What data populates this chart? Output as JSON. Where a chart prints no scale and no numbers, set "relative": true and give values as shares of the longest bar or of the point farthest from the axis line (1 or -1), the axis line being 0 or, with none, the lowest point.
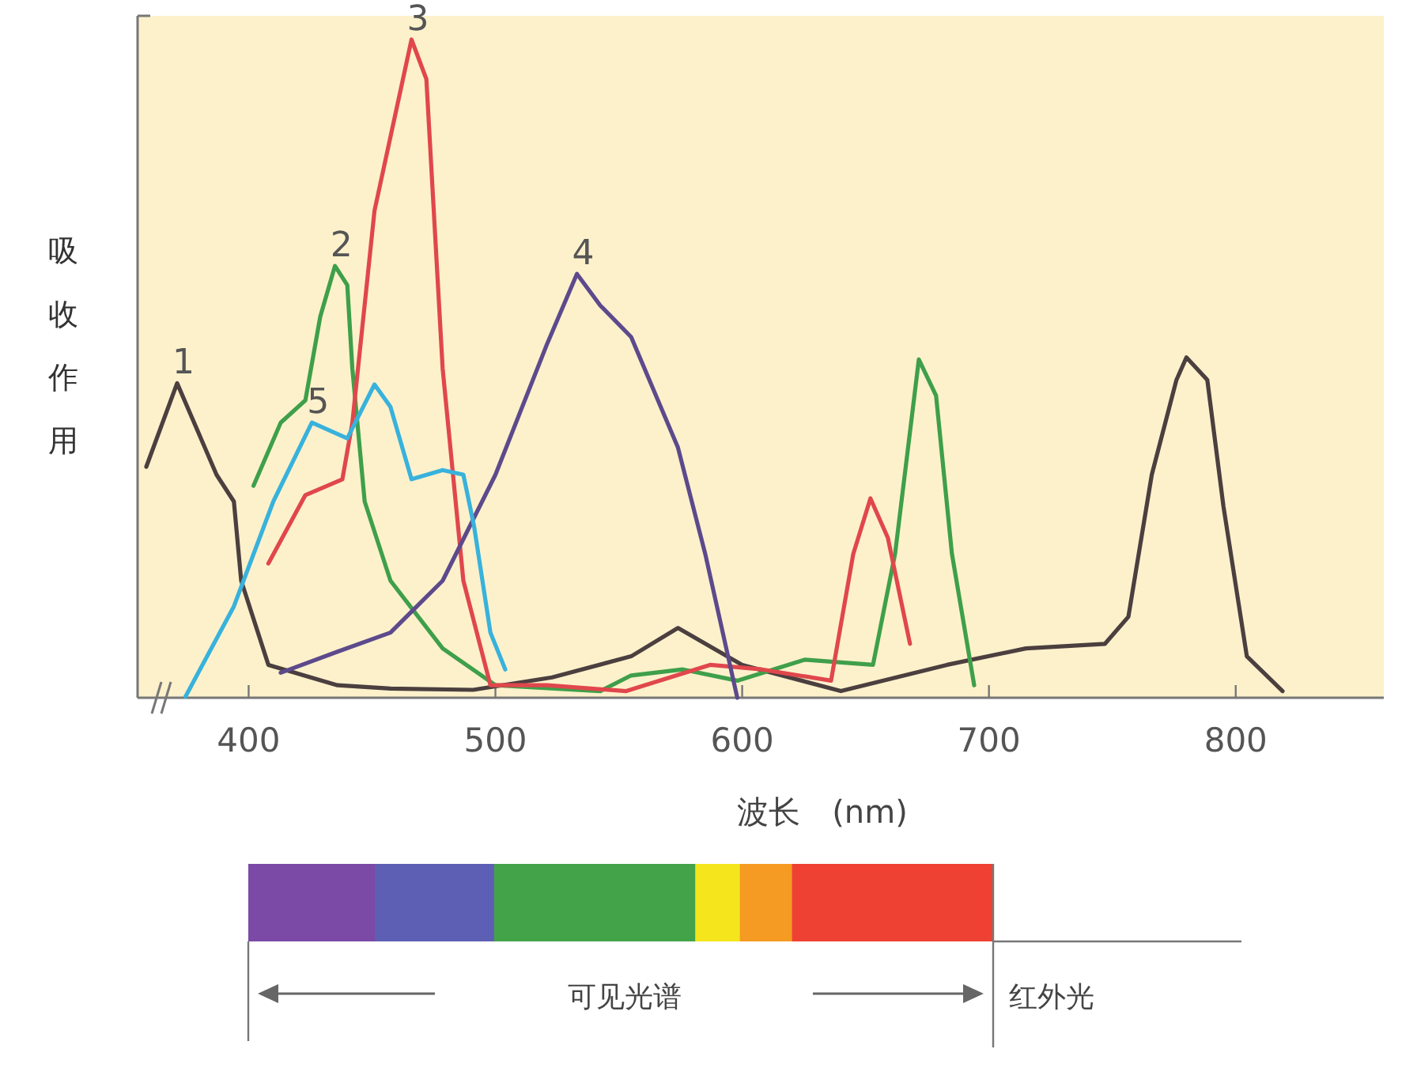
{
  "chart_data": {
    "type": "line",
    "relative": true,
    "xlim": [
      355,
      860
    ],
    "xticks": [
      400,
      500,
      600,
      700,
      800
    ],
    "xlabel": "波长　(nm)",
    "ylabel": "吸收作用",
    "series": [
      {
        "name": "1",
        "color": "#4b3f3f",
        "x": [
          358.5,
          371,
          387,
          394,
          397,
          408,
          436,
          457.5,
          491,
          523,
          555,
          574,
          600,
          640,
          683,
          715,
          747,
          756.5,
          766,
          776,
          780,
          788.5,
          795,
          804.5,
          819
        ],
        "values": [
          0.351,
          0.478,
          0.339,
          0.298,
          0.178,
          0.05,
          0.019,
          0.014,
          0.012,
          0.031,
          0.063,
          0.106,
          0.05,
          0.01,
          0.05,
          0.075,
          0.082,
          0.123,
          0.339,
          0.483,
          0.517,
          0.483,
          0.291,
          0.063,
          0.01
        ]
      },
      {
        "name": "2",
        "color": "#3f9f4a",
        "x": [
          402,
          413,
          423,
          429,
          435,
          440,
          442,
          447,
          457.5,
          478.6,
          500,
          542.5,
          555,
          576,
          598,
          625.5,
          653,
          662,
          671.6,
          678.6,
          685,
          694
        ],
        "values": [
          0.322,
          0.418,
          0.452,
          0.579,
          0.656,
          0.627,
          0.5,
          0.298,
          0.178,
          0.075,
          0.019,
          0.01,
          0.034,
          0.043,
          0.026,
          0.058,
          0.05,
          0.219,
          0.514,
          0.459,
          0.219,
          0.019
        ]
      },
      {
        "name": "3",
        "color": "#e0474c",
        "x": [
          408,
          423,
          438,
          442,
          451,
          466,
          472,
          478.6,
          487,
          498,
          521,
          553,
          587,
          608,
          636,
          645,
          652,
          659,
          668
        ],
        "values": [
          0.204,
          0.308,
          0.332,
          0.418,
          0.74,
          1.0,
          0.94,
          0.5,
          0.178,
          0.019,
          0.019,
          0.01,
          0.05,
          0.043,
          0.026,
          0.218,
          0.303,
          0.243,
          0.082
        ]
      },
      {
        "name": "4",
        "color": "#5d4a8c",
        "x": [
          413,
          436,
          457.5,
          478.6,
          500,
          521,
          533,
          542.5,
          555,
          574,
          585,
          598
        ],
        "values": [
          0.038,
          0.07,
          0.099,
          0.178,
          0.339,
          0.538,
          0.644,
          0.596,
          0.548,
          0.38,
          0.219,
          0.0
        ]
      },
      {
        "name": "5",
        "color": "#38b2dc",
        "x": [
          374.4,
          394,
          410,
          425.6,
          440,
          451,
          457.5,
          466,
          478.6,
          487,
          491.4,
          498,
          504
        ],
        "values": [
          0.002,
          0.139,
          0.298,
          0.418,
          0.394,
          0.476,
          0.442,
          0.332,
          0.346,
          0.339,
          0.26,
          0.099,
          0.043
        ]
      }
    ],
    "annotations": [
      "可见光谱",
      "红外光"
    ]
  }
}
